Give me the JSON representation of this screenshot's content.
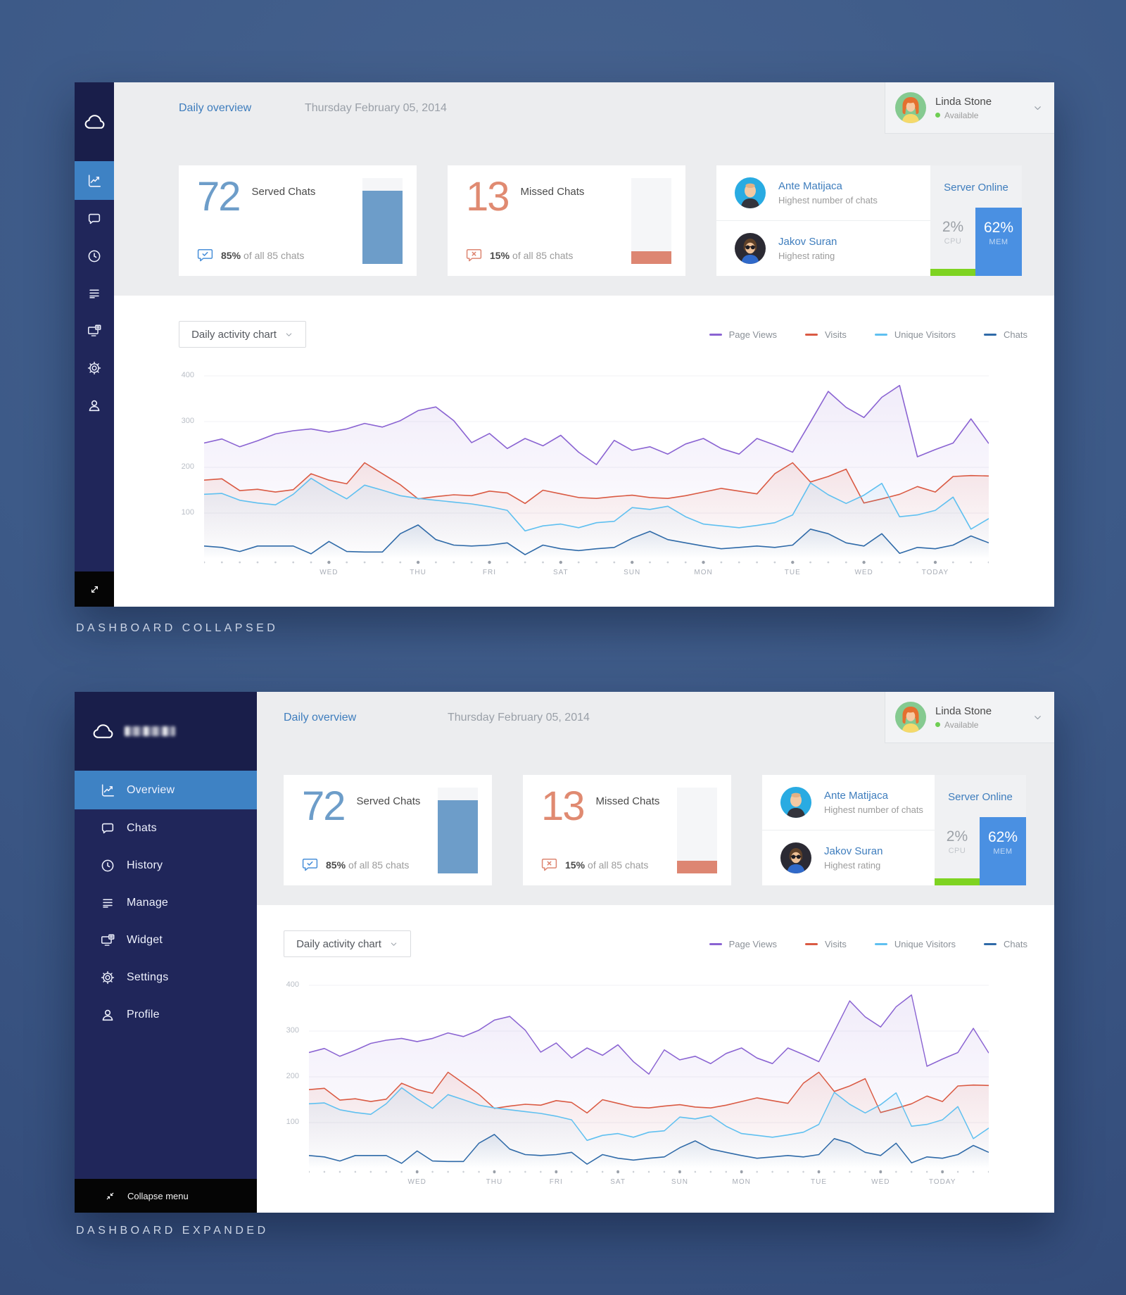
{
  "captions": {
    "collapsed": "DASHBOARD COLLAPSED",
    "expanded": "DASHBOARD EXPANDED"
  },
  "header": {
    "title": "Daily overview",
    "date": "Thursday February 05, 2014",
    "user": {
      "name": "Linda Stone",
      "status": "Available",
      "avatar": "linda"
    }
  },
  "sidebar": {
    "items": [
      {
        "label": "Overview",
        "icon": "chart",
        "active": true
      },
      {
        "label": "Chats",
        "icon": "chat"
      },
      {
        "label": "History",
        "icon": "clock"
      },
      {
        "label": "Manage",
        "icon": "stack"
      },
      {
        "label": "Widget",
        "icon": "widget"
      },
      {
        "label": "Settings",
        "icon": "gear"
      },
      {
        "label": "Profile",
        "icon": "person"
      }
    ],
    "collapse_label": "Collapse menu"
  },
  "stats": {
    "served": {
      "value": "72",
      "label": "Served Chats",
      "note_bold": "85%",
      "note": "of all 85 chats",
      "bar_percent": 85
    },
    "missed": {
      "value": "13",
      "label": "Missed Chats",
      "note_bold": "15%",
      "note": "of all 85 chats",
      "bar_percent": 15
    },
    "team": [
      {
        "name": "Ante Matijaca",
        "subtitle": "Highest number of chats",
        "avatar": "ante"
      },
      {
        "name": "Jakov Suran",
        "subtitle": "Highest rating",
        "avatar": "jakov"
      }
    ],
    "server": {
      "status": "Server Online",
      "cpu_value": "2%",
      "cpu_label": "CPU",
      "mem_value": "62%",
      "mem_label": "MEM",
      "mem_percent": 62
    }
  },
  "activity": {
    "dropdown_label": "Daily activity chart",
    "chart_data": {
      "type": "line",
      "title": "Daily activity chart",
      "categories": [
        "WED",
        "THU",
        "FRI",
        "SAT",
        "SUN",
        "MON",
        "TUE",
        "WED",
        "TODAY"
      ],
      "category_point_indices": [
        7,
        12,
        16,
        20,
        24,
        28,
        33,
        37,
        41
      ],
      "points_per_series": 45,
      "ylim": [
        0,
        400
      ],
      "yticks": [
        100,
        200,
        300,
        400
      ],
      "grid": "horizontal",
      "legend_position": "top-right",
      "series": [
        {
          "name": "Page Views",
          "color": "#8a63d2",
          "values": [
            253,
            262,
            245,
            258,
            273,
            280,
            284,
            277,
            284,
            296,
            288,
            302,
            324,
            332,
            302,
            254,
            274,
            241,
            263,
            247,
            270,
            233,
            206,
            259,
            237,
            245,
            229,
            251,
            263,
            241,
            229,
            263,
            249,
            233,
            299,
            366,
            331,
            309,
            353,
            379,
            223,
            239,
            253,
            306,
            252
          ]
        },
        {
          "name": "Visits",
          "color": "#da5a43",
          "values": [
            172,
            175,
            149,
            152,
            146,
            151,
            186,
            172,
            164,
            210,
            186,
            162,
            131,
            136,
            140,
            138,
            148,
            144,
            121,
            150,
            142,
            134,
            132,
            136,
            139,
            134,
            132,
            138,
            146,
            154,
            148,
            142,
            186,
            210,
            168,
            180,
            196,
            122,
            131,
            141,
            158,
            146,
            180,
            182,
            181
          ]
        },
        {
          "name": "Unique Visitors",
          "color": "#5fc0f0",
          "values": [
            141,
            143,
            128,
            122,
            118,
            141,
            176,
            152,
            131,
            161,
            150,
            138,
            132,
            128,
            124,
            120,
            114,
            106,
            61,
            72,
            76,
            68,
            79,
            82,
            112,
            108,
            115,
            92,
            76,
            72,
            68,
            73,
            79,
            96,
            166,
            140,
            121,
            139,
            165,
            92,
            96,
            106,
            135,
            65,
            88
          ]
        },
        {
          "name": "Chats",
          "color": "#2f6aa8",
          "values": [
            28,
            25,
            16,
            28,
            28,
            28,
            11,
            38,
            16,
            15,
            15,
            55,
            74,
            42,
            30,
            28,
            30,
            35,
            9,
            30,
            22,
            18,
            22,
            25,
            45,
            60,
            42,
            35,
            28,
            22,
            25,
            28,
            25,
            30,
            65,
            55,
            35,
            28,
            55,
            12,
            25,
            22,
            30,
            50,
            35
          ]
        }
      ]
    }
  },
  "colors": {
    "accent_blue": "#3e7dbd",
    "selected_item_blue": "#3e82c4",
    "served_blue": "#6d9dc9",
    "missed_salmon": "#dd8672",
    "server_green": "#7ed321",
    "mem_blue": "#4a90e2",
    "sidebar_navy": "#20265a",
    "status_green": "#6fce53"
  }
}
